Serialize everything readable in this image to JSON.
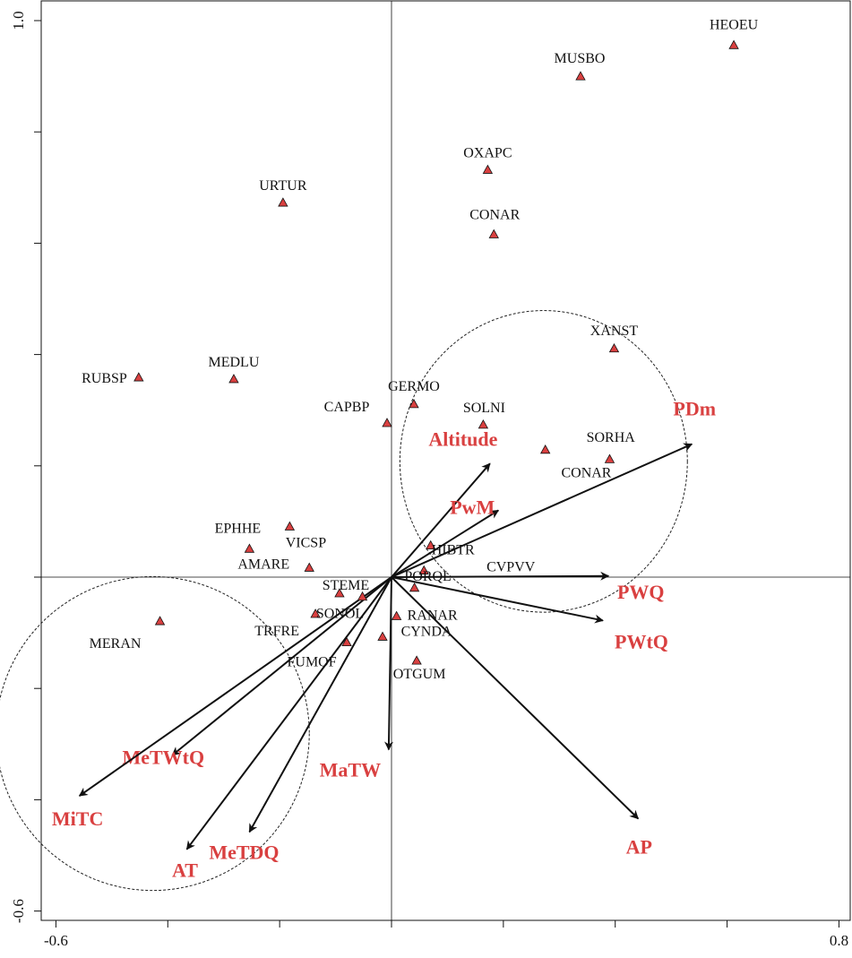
{
  "chart_data": {
    "type": "scatter",
    "subtype": "ordination biplot (species triangles + environmental vectors)",
    "title": "",
    "xlabel": "",
    "ylabel": "",
    "xlim": [
      -0.6,
      0.8
    ],
    "ylim": [
      -0.6,
      1.0
    ],
    "x_tick_labels": [
      "-0.6",
      "0.8"
    ],
    "y_tick_labels": [
      "1.0",
      "-0.6"
    ],
    "x_ticks": [
      -0.6,
      -0.4,
      -0.2,
      0.0,
      0.2,
      0.4,
      0.6,
      0.8
    ],
    "y_ticks": [
      -0.6,
      -0.4,
      -0.2,
      0.0,
      0.2,
      0.4,
      0.6,
      0.8,
      1.0
    ],
    "grid": false,
    "reference_lines": {
      "x": 0,
      "y": 0
    },
    "colors": {
      "species_marker": "#d94040",
      "env_label": "#d94040",
      "arrow": "#111111",
      "axis": "#111111"
    },
    "species": [
      {
        "label": "HEOEU",
        "x": 0.612,
        "y": 0.956
      },
      {
        "label": "MUSBO",
        "x": 0.338,
        "y": 0.9
      },
      {
        "label": "OXAPC",
        "x": 0.172,
        "y": 0.732
      },
      {
        "label": "URTUR",
        "x": -0.194,
        "y": 0.673
      },
      {
        "label": "CONAR",
        "x": 0.183,
        "y": 0.616
      },
      {
        "label": "XANST",
        "x": 0.398,
        "y": 0.411
      },
      {
        "label": "RUBSP",
        "x": -0.452,
        "y": 0.359
      },
      {
        "label": "MEDLU",
        "x": -0.282,
        "y": 0.356
      },
      {
        "label": "GERMO",
        "x": 0.04,
        "y": 0.311
      },
      {
        "label": "CAPBP",
        "x": -0.008,
        "y": 0.277
      },
      {
        "label": "SOLNI",
        "x": 0.164,
        "y": 0.274
      },
      {
        "label": "SORHA",
        "x": 0.275,
        "y": 0.229
      },
      {
        "label": "CONAR",
        "x": 0.39,
        "y": 0.212
      },
      {
        "label": "EPHHE",
        "x": -0.182,
        "y": 0.091
      },
      {
        "label": "HIBTR",
        "x": 0.07,
        "y": 0.057
      },
      {
        "label": "VICSP",
        "x": -0.254,
        "y": 0.051
      },
      {
        "label": "AMARE",
        "x": -0.147,
        "y": 0.017
      },
      {
        "label": "CVPVV",
        "x": 0.058,
        "y": 0.012
      },
      {
        "label": "STEME",
        "x": -0.093,
        "y": -0.029
      },
      {
        "label": "SONOL",
        "x": -0.052,
        "y": -0.035
      },
      {
        "label": "PORQL",
        "x": 0.041,
        "y": -0.019
      },
      {
        "label": "TRFRE",
        "x": -0.136,
        "y": -0.066
      },
      {
        "label": "RANAR",
        "x": 0.009,
        "y": -0.07
      },
      {
        "label": "MERAN",
        "x": -0.414,
        "y": -0.079
      },
      {
        "label": "FUMOF",
        "x": -0.08,
        "y": -0.117
      },
      {
        "label": "CYNDA",
        "x": -0.016,
        "y": -0.107
      },
      {
        "label": "OTGUM",
        "x": 0.045,
        "y": -0.15
      }
    ],
    "env_vectors": [
      {
        "label": "PDm",
        "x": 0.537,
        "y": 0.239
      },
      {
        "label": "Altitude",
        "x": 0.176,
        "y": 0.204
      },
      {
        "label": "PwM",
        "x": 0.191,
        "y": 0.12
      },
      {
        "label": "PWQ",
        "x": 0.388,
        "y": 0.002
      },
      {
        "label": "PWtQ",
        "x": 0.378,
        "y": -0.078
      },
      {
        "label": "AP",
        "x": 0.441,
        "y": -0.434
      },
      {
        "label": "MaTW",
        "x": -0.005,
        "y": -0.31
      },
      {
        "label": "MeTWtQ",
        "x": -0.392,
        "y": -0.32
      },
      {
        "label": "MiTC",
        "x": -0.558,
        "y": -0.393
      },
      {
        "label": "MeTDQ",
        "x": -0.254,
        "y": -0.458
      },
      {
        "label": "AT",
        "x": -0.366,
        "y": -0.489
      }
    ],
    "ellipses": [
      {
        "center": [
          0.272,
          0.208
        ],
        "radius": [
          0.257,
          0.271
        ]
      },
      {
        "center": [
          -0.427,
          -0.281
        ],
        "radius": [
          0.28,
          0.282
        ]
      }
    ]
  }
}
